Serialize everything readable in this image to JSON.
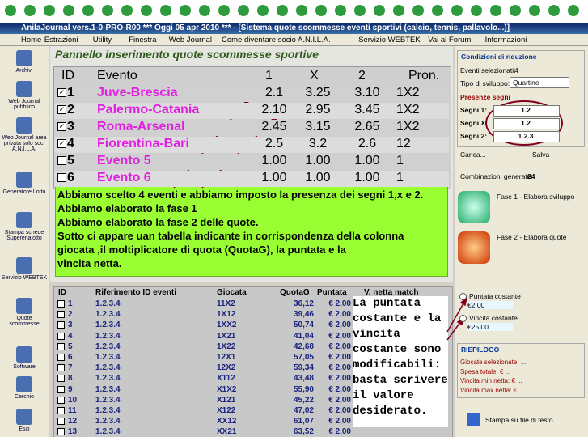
{
  "window": {
    "title": "AnilaJournal vers.1-0-PRO-R00  ***  Oggi 05 apr 2010  ***  - [Sistema quote scommesse eventi sportivi (calcio, tennis, pallavolo...)]",
    "menu": [
      "Home",
      "Estrazioni",
      "Utility",
      "Finestra",
      "Web Journal",
      "Come diventare socio A.N.I.L.A.",
      "Servizio WEBTEK",
      "Vai al Forum",
      "Informazioni"
    ]
  },
  "sidebar": [
    "Archivi",
    "Web Journal pubblico",
    "Web Journal area privata solo soci A.N.I.L.A.",
    "Generatore Lotto",
    "Stampa schede Superenalotto",
    "Servizio WEBTEK",
    "Quote scommesse",
    "Software",
    "Cerchio",
    "Esci"
  ],
  "panel": {
    "title": "Pannello inserimento quote scommesse sportive",
    "headers": [
      "ID",
      "Evento",
      "1",
      "X",
      "2",
      "Pron."
    ],
    "rows": [
      {
        "checked": true,
        "id": "1",
        "event": "Juve-Brescia",
        "odds": [
          "2.1",
          "3.25",
          "3.10"
        ],
        "pron": "1X2"
      },
      {
        "checked": true,
        "id": "2",
        "event": "Palermo-Catania",
        "odds": [
          "2.10",
          "2.95",
          "3.45"
        ],
        "pron": "1X2"
      },
      {
        "checked": true,
        "id": "3",
        "event": "Roma-Arsenal",
        "odds": [
          "2.45",
          "3.15",
          "2.65"
        ],
        "pron": "1X2"
      },
      {
        "checked": true,
        "id": "4",
        "event": "Fiorentina-Bari",
        "odds": [
          "2.5",
          "3.2",
          "2.6"
        ],
        "pron": "12"
      },
      {
        "checked": false,
        "id": "5",
        "event": "Evento 5",
        "odds": [
          "1.00",
          "1.00",
          "1.00"
        ],
        "pron": "1"
      },
      {
        "checked": false,
        "id": "6",
        "event": "Evento 6",
        "odds": [
          "1.00",
          "1.00",
          "1.00"
        ],
        "pron": "1"
      }
    ]
  },
  "note": [
    "Abbiamo scelto 4 eventi e abbiamo imposto la presenza dei segni 1,x e 2.",
    "Abbiamo elaborato la fase 1",
    "Abbiamo elaborato la fase 2 delle quote.",
    "Sotto ci appare uan tabella indicante in corrispondenza della colonna",
    "giocata ,il moltiplicatore di quota (QuotaG), la puntata e la",
    "vincita netta."
  ],
  "results": {
    "headers": [
      "ID",
      "Riferimento ID eventi",
      "Giocata",
      "QuotaG",
      "Puntata",
      "V. netta match"
    ],
    "rows": [
      [
        "1",
        "1.2.3.4",
        "11X2",
        "36,12",
        "€ 2,00"
      ],
      [
        "2",
        "1.2.3.4",
        "1X12",
        "39,46",
        "€ 2,00"
      ],
      [
        "3",
        "1.2.3.4",
        "1XX2",
        "50,74",
        "€ 2,00"
      ],
      [
        "4",
        "1.2.3.4",
        "1X21",
        "41,04",
        "€ 2,00"
      ],
      [
        "5",
        "1.2.3.4",
        "1X22",
        "42,68",
        "€ 2,00"
      ],
      [
        "6",
        "1.2.3.4",
        "12X1",
        "57,05",
        "€ 2,00"
      ],
      [
        "7",
        "1.2.3.4",
        "12X2",
        "59,34",
        "€ 2,00"
      ],
      [
        "8",
        "1.2.3.4",
        "X112",
        "43,48",
        "€ 2,00"
      ],
      [
        "9",
        "1.2.3.4",
        "X1X2",
        "55,90",
        "€ 2,00"
      ],
      [
        "10",
        "1.2.3.4",
        "X121",
        "45,22",
        "€ 2,00"
      ],
      [
        "11",
        "1.2.3.4",
        "X122",
        "47,02",
        "€ 2,00"
      ],
      [
        "12",
        "1.2.3.4",
        "XX12",
        "61,07",
        "€ 2,00"
      ],
      [
        "13",
        "1.2.3.4",
        "XX21",
        "63,52",
        "€ 2,00"
      ]
    ]
  },
  "side_note": "La puntata costante e la vincita costante sono modificabili: basta scrivere il valore desiderato.",
  "conditions": {
    "title": "Condizioni di riduzione",
    "events_label": "Eventi selezionati:",
    "events_value": "4",
    "type_label": "Tipo di sviluppo:",
    "type_value": "Quartine",
    "presence_title": "Presenze segni",
    "signs": [
      {
        "label": "Segni 1:",
        "value": "1.2"
      },
      {
        "label": "Segni X:",
        "value": "1.2"
      },
      {
        "label": "Segni 2:",
        "value": "1.2.3"
      }
    ],
    "load": "Carica...",
    "save": "Salva",
    "combos_label": "Combinazioni generate:",
    "combos_value": "24",
    "phase1": "Fase 1 - Elabora sviluppo",
    "phase2": "Fase 2 - Elabora quote",
    "stake_label": "Puntata costante",
    "stake_value": "€2.00",
    "win_label": "Vincita costante",
    "win_value": "€25.00",
    "summary_title": "RIEPILOGO",
    "summary": [
      "Giocate selezionate:  ...",
      "Spesa totale: €   ...",
      "Vincita min netta: €   ...",
      "Vincita max netta: €   ..."
    ],
    "print": "Stampa su file di testo"
  }
}
